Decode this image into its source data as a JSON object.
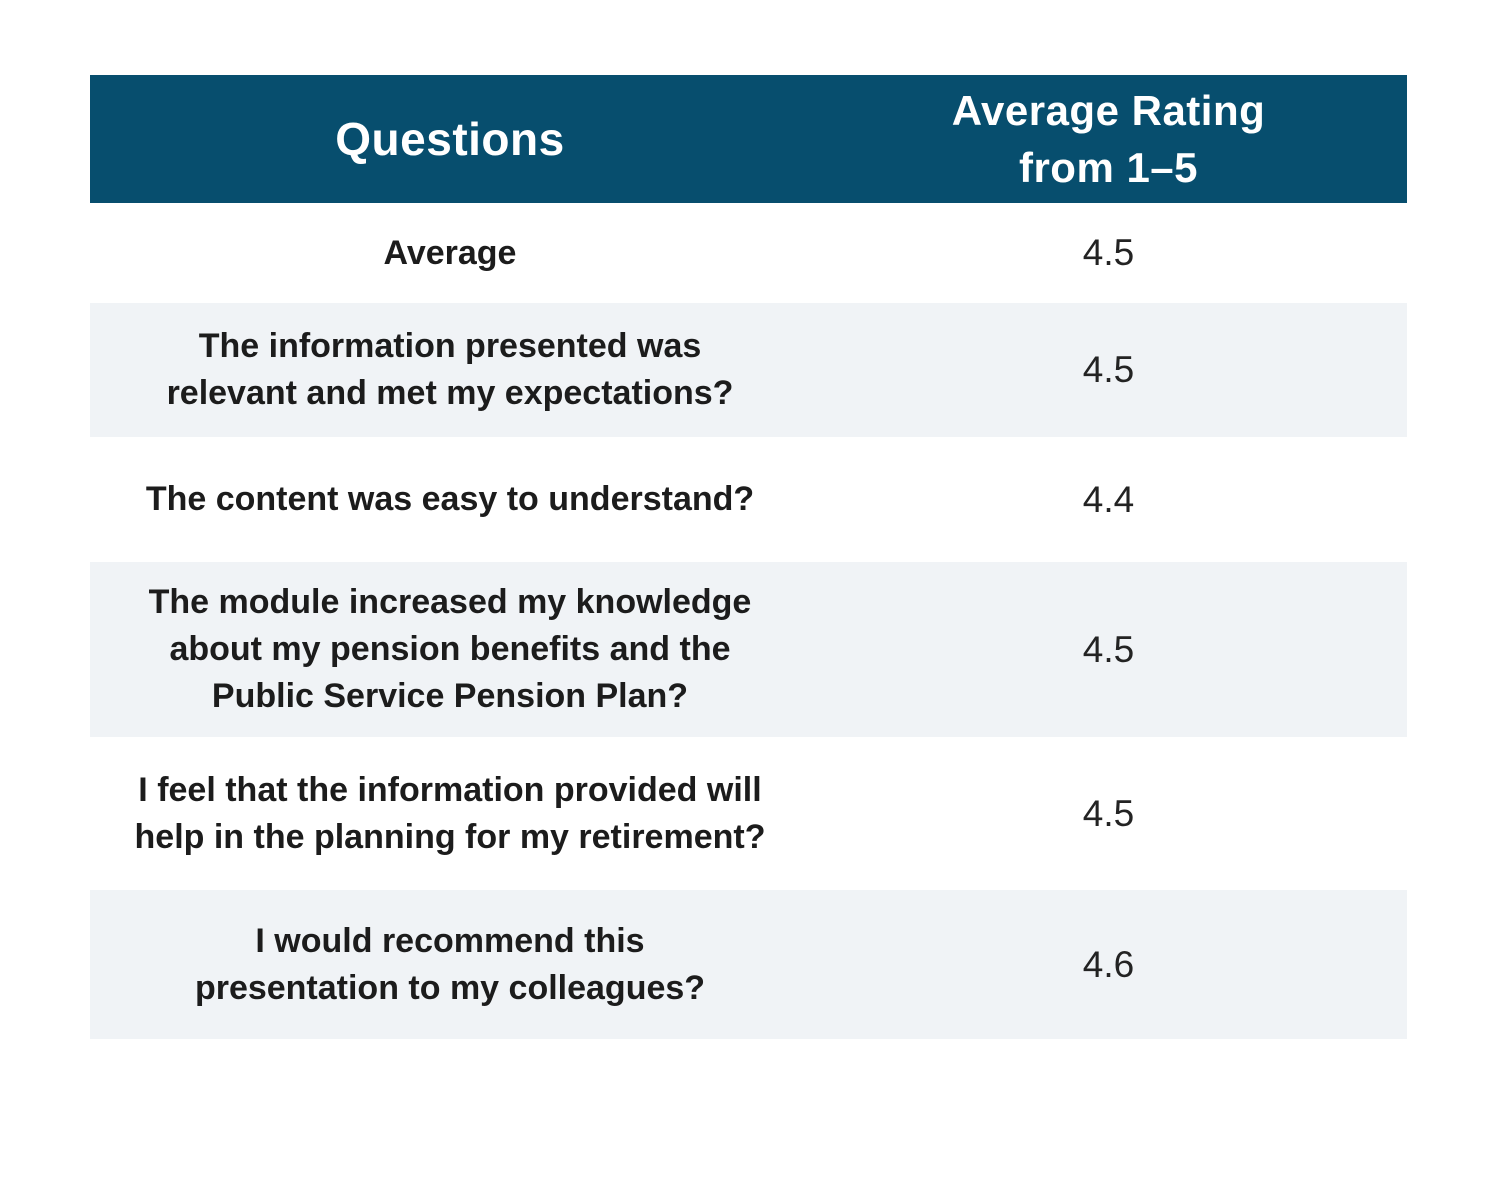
{
  "page": {
    "background": "#ffffff"
  },
  "table": {
    "header": {
      "questions_label": "Questions",
      "rating_label_lines": [
        "Average Rating",
        "from 1–5"
      ],
      "background": "#074e6e",
      "text_color": "#ffffff"
    },
    "stripe_color": "#f0f3f6",
    "rows": [
      {
        "question_lines": [
          "Average"
        ],
        "rating": "4.5"
      },
      {
        "question_lines": [
          "The information presented was",
          "relevant and met my expectations?"
        ],
        "rating": "4.5"
      },
      {
        "question_lines": [
          "The content was easy to understand?"
        ],
        "rating": "4.4"
      },
      {
        "question_lines": [
          "The module increased my knowledge",
          "about my pension benefits and the",
          "Public Service Pension Plan?"
        ],
        "rating": "4.5"
      },
      {
        "question_lines": [
          "I feel that the information provided will",
          "help in the planning for my retirement?"
        ],
        "rating": "4.5"
      },
      {
        "question_lines": [
          "I would recommend this",
          "presentation to my colleagues?"
        ],
        "rating": "4.6"
      }
    ]
  },
  "chart_data": {
    "type": "table",
    "title": "",
    "columns": [
      "Questions",
      "Average Rating from 1–5"
    ],
    "rows": [
      [
        "Average",
        4.5
      ],
      [
        "The information presented was relevant and met my expectations?",
        4.5
      ],
      [
        "The content was easy to understand?",
        4.4
      ],
      [
        "The module increased my knowledge about my pension benefits and the Public Service Pension Plan?",
        4.5
      ],
      [
        "I feel that the information provided will help in the planning for my retirement?",
        4.5
      ],
      [
        "I would recommend this presentation to my colleagues?",
        4.6
      ]
    ],
    "legend": "none",
    "grid": "row-stripes"
  }
}
